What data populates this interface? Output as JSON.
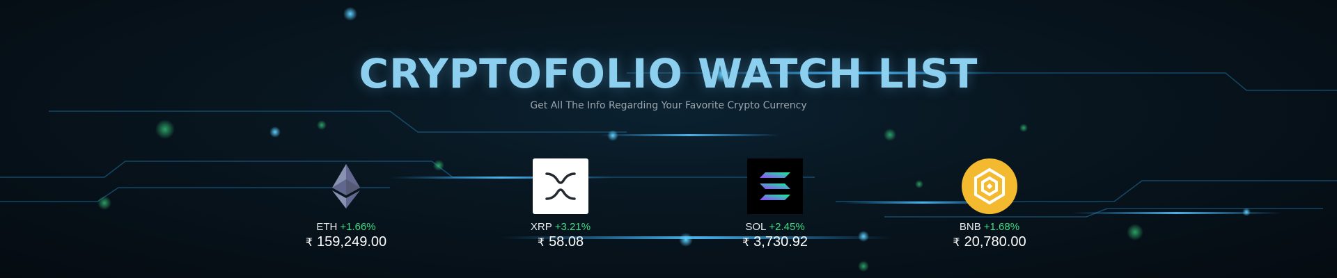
{
  "header": {
    "title": "CRYPTOFOLIO WATCH LIST",
    "subtitle": "Get All The Info Regarding Your Favorite Crypto Currency"
  },
  "coins": [
    {
      "symbol": "ETH",
      "change": "+1.66%",
      "currency": "₹",
      "price": "159,249.00",
      "icon": "ethereum-icon"
    },
    {
      "symbol": "XRP",
      "change": "+3.21%",
      "currency": "₹",
      "price": "58.08",
      "icon": "xrp-icon"
    },
    {
      "symbol": "SOL",
      "change": "+2.45%",
      "currency": "₹",
      "price": "3,730.92",
      "icon": "solana-icon"
    },
    {
      "symbol": "BNB",
      "change": "+1.68%",
      "currency": "₹",
      "price": "20,780.00",
      "icon": "bnb-icon"
    }
  ],
  "colors": {
    "title": "#8ccfee",
    "positive_change": "#3ddc84",
    "background": "#071018",
    "glow": "#2fa8ff"
  }
}
